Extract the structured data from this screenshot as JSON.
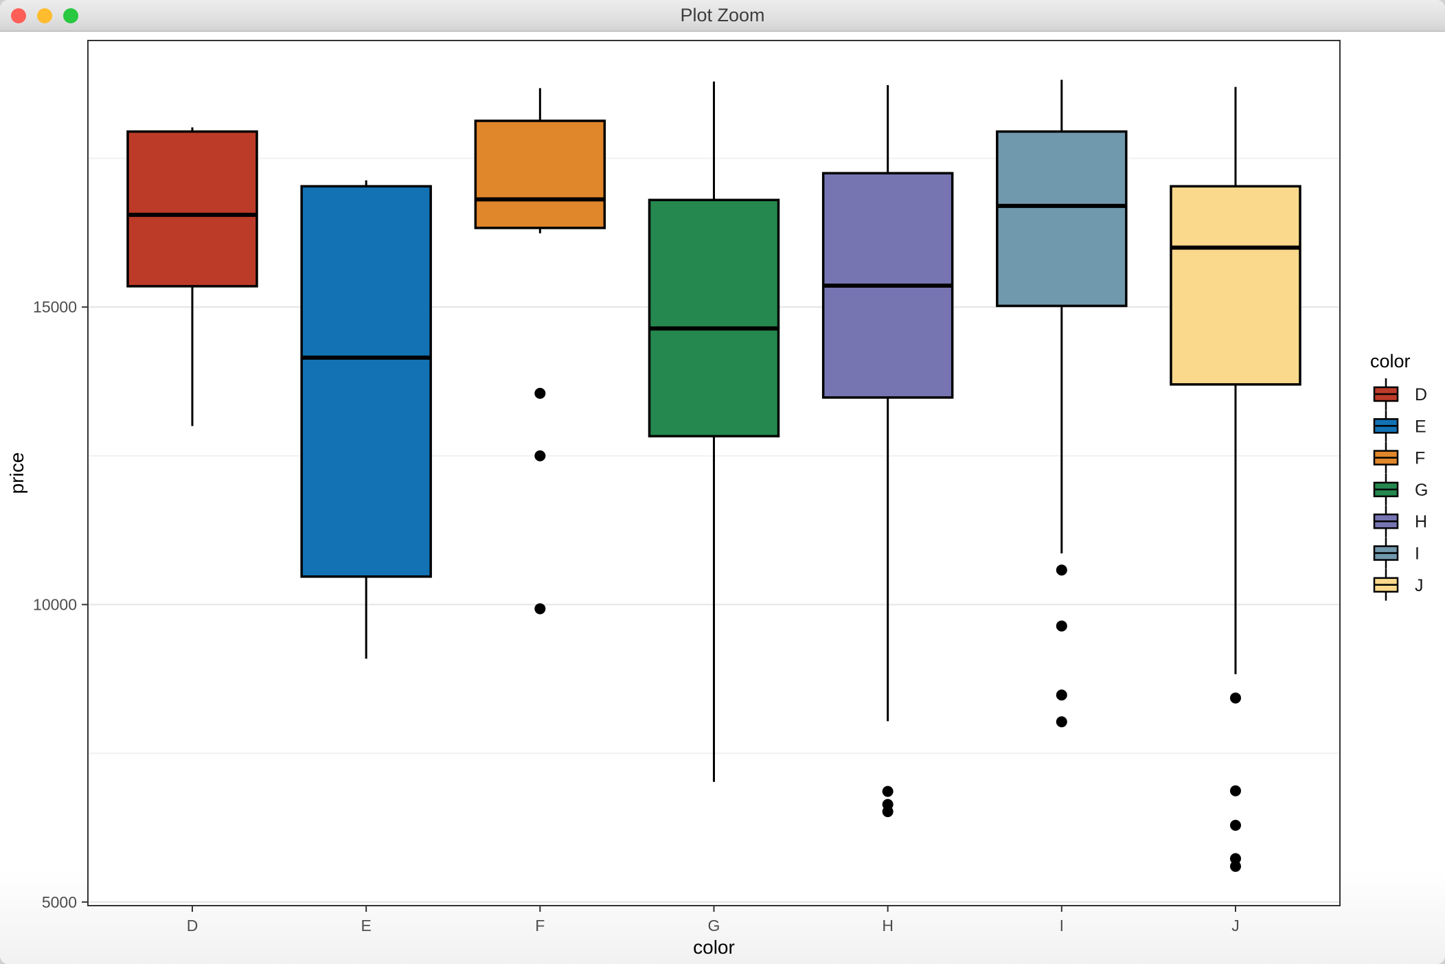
{
  "window": {
    "title": "Plot Zoom",
    "traffic_lights": {
      "close_color": "#ff5f57",
      "minimize_color": "#febc2e",
      "zoom_color": "#28c840"
    }
  },
  "chart_data": {
    "type": "boxplot",
    "title": "",
    "xlabel": "color",
    "ylabel": "price",
    "categories": [
      "D",
      "E",
      "F",
      "G",
      "H",
      "I",
      "J"
    ],
    "y_ticks": [
      5000,
      10000,
      15000
    ],
    "y_minor_gridlines": [
      7500,
      12500,
      17500
    ],
    "ylim": [
      4940,
      19480
    ],
    "grid": "on",
    "panel_border": true,
    "series": [
      {
        "category": "D",
        "color_hex": "#bc3b28",
        "whisker_low": 13000,
        "q1": 15350,
        "median": 16550,
        "q3": 17950,
        "whisker_high": 18020,
        "outliers": []
      },
      {
        "category": "E",
        "color_hex": "#1272b4",
        "whisker_low": 9090,
        "q1": 10470,
        "median": 14150,
        "q3": 17030,
        "whisker_high": 17130,
        "outliers": []
      },
      {
        "category": "F",
        "color_hex": "#e0862b",
        "whisker_low": 16240,
        "q1": 16330,
        "median": 16810,
        "q3": 18130,
        "whisker_high": 18680,
        "outliers": [
          13550,
          12500,
          9930
        ]
      },
      {
        "category": "G",
        "color_hex": "#25884e",
        "whisker_low": 7020,
        "q1": 12830,
        "median": 14640,
        "q3": 16800,
        "whisker_high": 18790,
        "outliers": []
      },
      {
        "category": "H",
        "color_hex": "#7675b2",
        "whisker_low": 8040,
        "q1": 13480,
        "median": 15360,
        "q3": 17250,
        "whisker_high": 18730,
        "outliers": [
          6860,
          6640,
          6520
        ]
      },
      {
        "category": "I",
        "color_hex": "#7199ad",
        "whisker_low": 10860,
        "q1": 15020,
        "median": 16700,
        "q3": 17950,
        "whisker_high": 18820,
        "outliers": [
          10580,
          9640,
          8480,
          8030
        ]
      },
      {
        "category": "J",
        "color_hex": "#fad88c",
        "whisker_low": 8830,
        "q1": 13700,
        "median": 16000,
        "q3": 17030,
        "whisker_high": 18700,
        "outliers": [
          8430,
          6870,
          6290,
          5730,
          5600
        ]
      }
    ],
    "legend": {
      "title": "color",
      "position": "right",
      "entries": [
        {
          "label": "D",
          "color": "#bc3b28"
        },
        {
          "label": "E",
          "color": "#1272b4"
        },
        {
          "label": "F",
          "color": "#e0862b"
        },
        {
          "label": "G",
          "color": "#25884e"
        },
        {
          "label": "H",
          "color": "#7675b2"
        },
        {
          "label": "I",
          "color": "#7199ad"
        },
        {
          "label": "J",
          "color": "#fad88c"
        }
      ]
    },
    "style_colors": {
      "box_outline": "#000000",
      "median_line": "#000000",
      "outlier_dot": "#000000",
      "grid_major": "#e4e4e4",
      "grid_minor": "#f1f1f1",
      "panel_border": "#333333",
      "tick_label": "#4d4d4d",
      "axis_title": "#000000"
    }
  }
}
